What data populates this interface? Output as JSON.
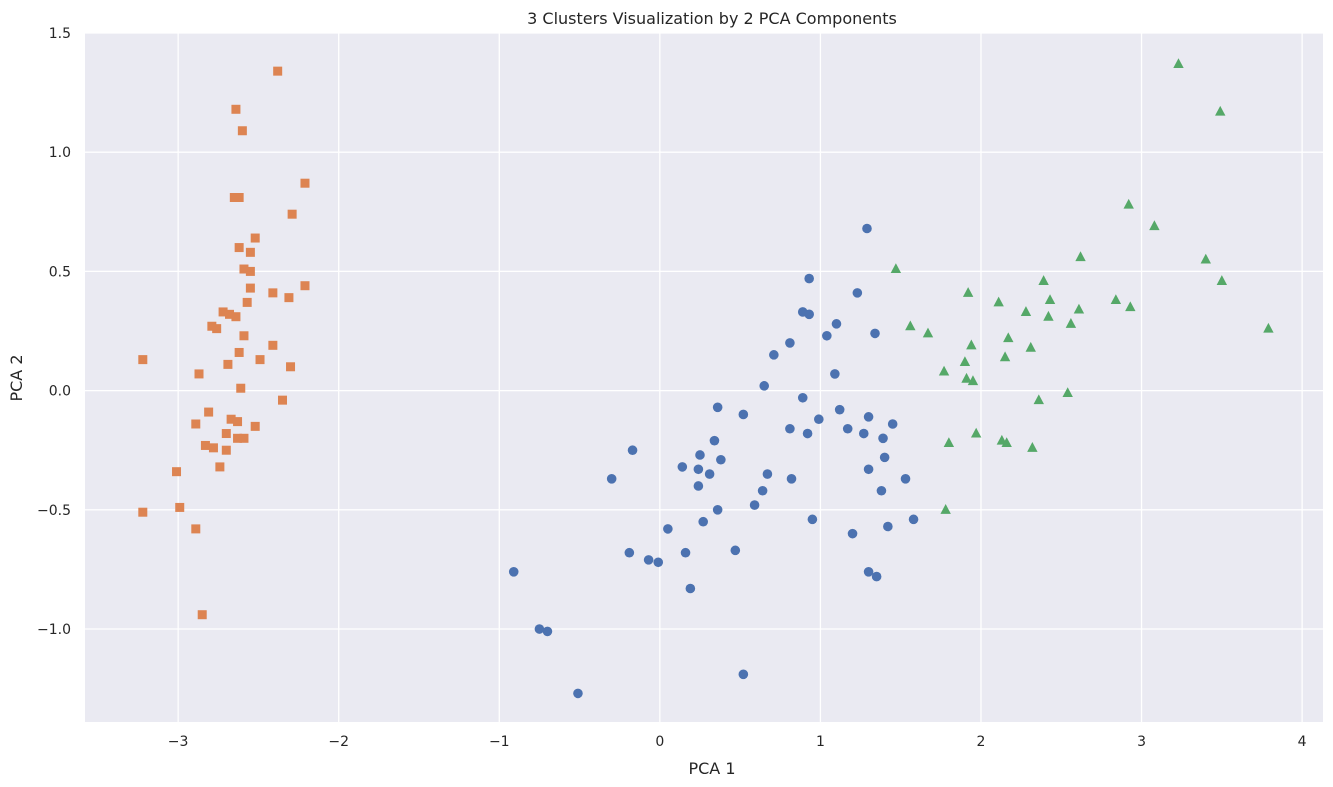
{
  "chart_data": {
    "type": "scatter",
    "title": "3 Clusters Visualization by 2 PCA Components",
    "xlabel": "PCA 1",
    "ylabel": "PCA 2",
    "xlim": [
      -3.58,
      4.13
    ],
    "ylim": [
      -1.39,
      1.5
    ],
    "xticks": [
      -3,
      -2,
      -1,
      0,
      1,
      2,
      3,
      4
    ],
    "yticks": [
      -1.0,
      -0.5,
      0.0,
      0.5,
      1.0,
      1.5
    ],
    "xtick_labels": [
      "−3",
      "−2",
      "−1",
      "0",
      "1",
      "2",
      "3",
      "4"
    ],
    "ytick_labels": [
      "−1.0",
      "−0.5",
      "0.0",
      "0.5",
      "1.0",
      "1.5"
    ],
    "grid": true,
    "background": "#eaeaf2",
    "series": [
      {
        "marker": "square",
        "color": "#dd8452",
        "points": [
          [
            -3.22,
            0.13
          ],
          [
            -3.22,
            -0.51
          ],
          [
            -3.01,
            -0.34
          ],
          [
            -2.99,
            -0.49
          ],
          [
            -2.89,
            -0.58
          ],
          [
            -2.85,
            -0.94
          ],
          [
            -2.89,
            -0.14
          ],
          [
            -2.87,
            0.07
          ],
          [
            -2.83,
            -0.23
          ],
          [
            -2.81,
            -0.09
          ],
          [
            -2.79,
            0.27
          ],
          [
            -2.78,
            -0.24
          ],
          [
            -2.76,
            0.26
          ],
          [
            -2.74,
            -0.32
          ],
          [
            -2.72,
            0.33
          ],
          [
            -2.7,
            -0.18
          ],
          [
            -2.7,
            -0.25
          ],
          [
            -2.69,
            0.11
          ],
          [
            -2.68,
            0.32
          ],
          [
            -2.67,
            -0.12
          ],
          [
            -2.65,
            0.81
          ],
          [
            -2.64,
            1.18
          ],
          [
            -2.64,
            0.31
          ],
          [
            -2.63,
            -0.13
          ],
          [
            -2.63,
            -0.2
          ],
          [
            -2.62,
            0.81
          ],
          [
            -2.62,
            0.6
          ],
          [
            -2.62,
            0.16
          ],
          [
            -2.61,
            0.01
          ],
          [
            -2.6,
            1.09
          ],
          [
            -2.59,
            0.23
          ],
          [
            -2.59,
            -0.2
          ],
          [
            -2.59,
            0.51
          ],
          [
            -2.57,
            0.37
          ],
          [
            -2.55,
            0.58
          ],
          [
            -2.55,
            0.5
          ],
          [
            -2.55,
            0.43
          ],
          [
            -2.52,
            0.64
          ],
          [
            -2.52,
            -0.15
          ],
          [
            -2.49,
            0.13
          ],
          [
            -2.41,
            0.19
          ],
          [
            -2.41,
            0.41
          ],
          [
            -2.38,
            1.34
          ],
          [
            -2.35,
            -0.04
          ],
          [
            -2.31,
            0.39
          ],
          [
            -2.3,
            0.1
          ],
          [
            -2.29,
            0.74
          ],
          [
            -2.21,
            0.87
          ],
          [
            -2.21,
            0.44
          ]
        ]
      },
      {
        "marker": "circle",
        "color": "#4c72b0",
        "points": [
          [
            -0.91,
            -0.76
          ],
          [
            -0.75,
            -1.0
          ],
          [
            -0.7,
            -1.01
          ],
          [
            -0.51,
            -1.27
          ],
          [
            -0.3,
            -0.37
          ],
          [
            -0.19,
            -0.68
          ],
          [
            -0.17,
            -0.25
          ],
          [
            -0.07,
            -0.71
          ],
          [
            -0.01,
            -0.72
          ],
          [
            0.05,
            -0.58
          ],
          [
            0.14,
            -0.32
          ],
          [
            0.16,
            -0.68
          ],
          [
            0.19,
            -0.83
          ],
          [
            0.24,
            -0.4
          ],
          [
            0.24,
            -0.33
          ],
          [
            0.25,
            -0.27
          ],
          [
            0.27,
            -0.55
          ],
          [
            0.31,
            -0.35
          ],
          [
            0.34,
            -0.21
          ],
          [
            0.36,
            -0.5
          ],
          [
            0.36,
            -0.07
          ],
          [
            0.38,
            -0.29
          ],
          [
            0.47,
            -0.67
          ],
          [
            0.52,
            -0.1
          ],
          [
            0.52,
            -1.19
          ],
          [
            0.59,
            -0.48
          ],
          [
            0.64,
            -0.42
          ],
          [
            0.65,
            0.02
          ],
          [
            0.67,
            -0.35
          ],
          [
            0.71,
            0.15
          ],
          [
            0.81,
            0.2
          ],
          [
            0.81,
            -0.16
          ],
          [
            0.82,
            -0.37
          ],
          [
            0.89,
            0.33
          ],
          [
            0.89,
            -0.03
          ],
          [
            0.92,
            -0.18
          ],
          [
            0.93,
            0.47
          ],
          [
            0.93,
            0.32
          ],
          [
            0.95,
            -0.54
          ],
          [
            0.99,
            -0.12
          ],
          [
            1.04,
            0.23
          ],
          [
            1.09,
            0.07
          ],
          [
            1.1,
            0.28
          ],
          [
            1.12,
            -0.08
          ],
          [
            1.17,
            -0.16
          ],
          [
            1.2,
            -0.6
          ],
          [
            1.23,
            0.41
          ],
          [
            1.27,
            -0.18
          ],
          [
            1.29,
            0.68
          ],
          [
            1.3,
            -0.11
          ],
          [
            1.3,
            -0.33
          ],
          [
            1.3,
            -0.76
          ],
          [
            1.34,
            0.24
          ],
          [
            1.35,
            -0.78
          ],
          [
            1.38,
            -0.42
          ],
          [
            1.39,
            -0.2
          ],
          [
            1.4,
            -0.28
          ],
          [
            1.42,
            -0.57
          ],
          [
            1.45,
            -0.14
          ],
          [
            1.53,
            -0.37
          ],
          [
            1.58,
            -0.54
          ]
        ]
      },
      {
        "marker": "triangle",
        "color": "#55a868",
        "points": [
          [
            1.47,
            0.51
          ],
          [
            1.56,
            0.27
          ],
          [
            1.67,
            0.24
          ],
          [
            1.77,
            0.08
          ],
          [
            1.78,
            -0.5
          ],
          [
            1.8,
            -0.22
          ],
          [
            1.9,
            0.12
          ],
          [
            1.91,
            0.05
          ],
          [
            1.92,
            0.41
          ],
          [
            1.94,
            0.19
          ],
          [
            1.95,
            0.04
          ],
          [
            1.97,
            -0.18
          ],
          [
            2.11,
            0.37
          ],
          [
            2.13,
            -0.21
          ],
          [
            2.15,
            0.14
          ],
          [
            2.16,
            -0.22
          ],
          [
            2.17,
            0.22
          ],
          [
            2.28,
            0.33
          ],
          [
            2.31,
            0.18
          ],
          [
            2.32,
            -0.24
          ],
          [
            2.36,
            -0.04
          ],
          [
            2.39,
            0.46
          ],
          [
            2.42,
            0.31
          ],
          [
            2.43,
            0.38
          ],
          [
            2.54,
            -0.01
          ],
          [
            2.56,
            0.28
          ],
          [
            2.61,
            0.34
          ],
          [
            2.62,
            0.56
          ],
          [
            2.84,
            0.38
          ],
          [
            2.92,
            0.78
          ],
          [
            2.93,
            0.35
          ],
          [
            3.08,
            0.69
          ],
          [
            3.23,
            1.37
          ],
          [
            3.4,
            0.55
          ],
          [
            3.49,
            1.17
          ],
          [
            3.5,
            0.46
          ],
          [
            3.79,
            0.26
          ]
        ]
      }
    ]
  }
}
